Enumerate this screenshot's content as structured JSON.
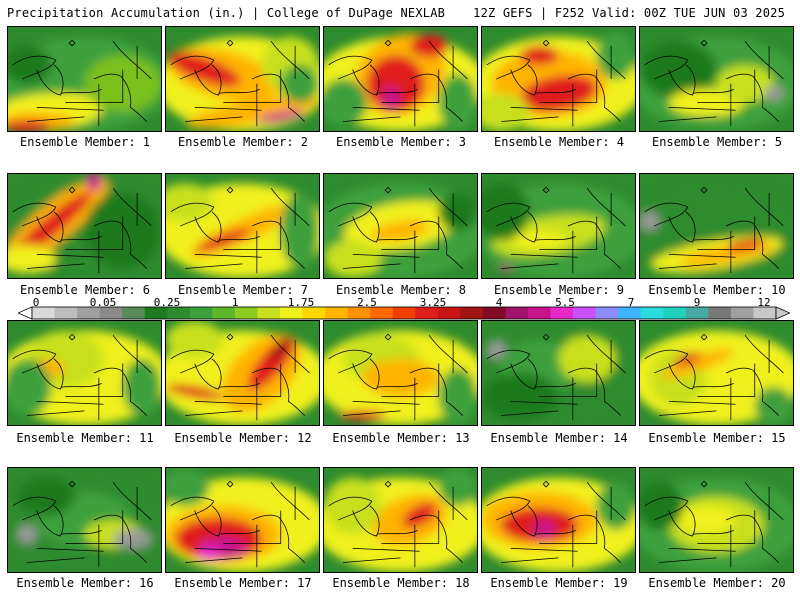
{
  "header": {
    "title_left": "Precipitation Accumulation (in.) | College of DuPage NEXLAB",
    "title_right": "12Z GEFS | F252 Valid: 00Z TUE JUN 03 2025"
  },
  "caption_prefix": "Ensemble Member:",
  "members": [
    {
      "id": 1,
      "label": "Ensemble Member: 1"
    },
    {
      "id": 2,
      "label": "Ensemble Member: 2"
    },
    {
      "id": 3,
      "label": "Ensemble Member: 3"
    },
    {
      "id": 4,
      "label": "Ensemble Member: 4"
    },
    {
      "id": 5,
      "label": "Ensemble Member: 5"
    },
    {
      "id": 6,
      "label": "Ensemble Member: 6"
    },
    {
      "id": 7,
      "label": "Ensemble Member: 7"
    },
    {
      "id": 8,
      "label": "Ensemble Member: 8"
    },
    {
      "id": 9,
      "label": "Ensemble Member: 9"
    },
    {
      "id": 10,
      "label": "Ensemble Member: 10"
    },
    {
      "id": 11,
      "label": "Ensemble Member: 11"
    },
    {
      "id": 12,
      "label": "Ensemble Member: 12"
    },
    {
      "id": 13,
      "label": "Ensemble Member: 13"
    },
    {
      "id": 14,
      "label": "Ensemble Member: 14"
    },
    {
      "id": 15,
      "label": "Ensemble Member: 15"
    },
    {
      "id": 16,
      "label": "Ensemble Member: 16"
    },
    {
      "id": 17,
      "label": "Ensemble Member: 17"
    },
    {
      "id": 18,
      "label": "Ensemble Member: 18"
    },
    {
      "id": 19,
      "label": "Ensemble Member: 19"
    },
    {
      "id": 20,
      "label": "Ensemble Member: 20"
    }
  ],
  "colorbar": {
    "labels": [
      "0",
      "0.05",
      "0.25",
      "1",
      "1.75",
      "2.5",
      "3.25",
      "4",
      "5.5",
      "7",
      "9",
      "12"
    ],
    "colors": [
      "#d9d9d9",
      "#bdbdbd",
      "#a0a0a0",
      "#8a8a8a",
      "#5a8a5a",
      "#1e7a1e",
      "#2e8b2e",
      "#3ca03c",
      "#5fb82a",
      "#8ccc1e",
      "#c8e01e",
      "#f0f01e",
      "#ffd700",
      "#ffb400",
      "#ff9100",
      "#ff6a00",
      "#f04000",
      "#e01e1e",
      "#c81414",
      "#a01414",
      "#820a28",
      "#a0146e",
      "#c8148c",
      "#e628c8",
      "#c850ff",
      "#8c8cff",
      "#3cb4ff",
      "#28dcdc",
      "#1ed2be",
      "#46aaa0",
      "#787878",
      "#a0a0a0",
      "#c8c8c8"
    ]
  }
}
